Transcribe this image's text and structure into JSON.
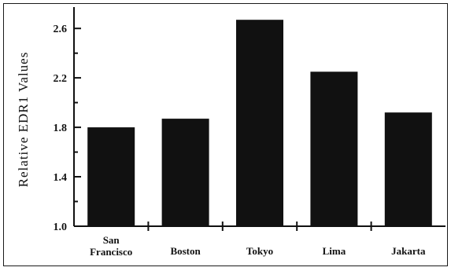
{
  "chart_data": {
    "type": "bar",
    "categories": [
      [
        "San",
        "Francisco"
      ],
      [
        "Boston"
      ],
      [
        "Tokyo"
      ],
      [
        "Lima"
      ],
      [
        "Jakarta"
      ]
    ],
    "values": [
      1.8,
      1.87,
      2.67,
      2.25,
      1.92
    ],
    "title": "",
    "xlabel": "",
    "ylabel": "Relative EDR1 Values",
    "ylim": [
      1.0,
      2.76
    ],
    "yticks": [
      "1.0",
      "1.4",
      "1.8",
      "2.2",
      "2.6"
    ],
    "grid": false,
    "bar_color": "#111111"
  }
}
